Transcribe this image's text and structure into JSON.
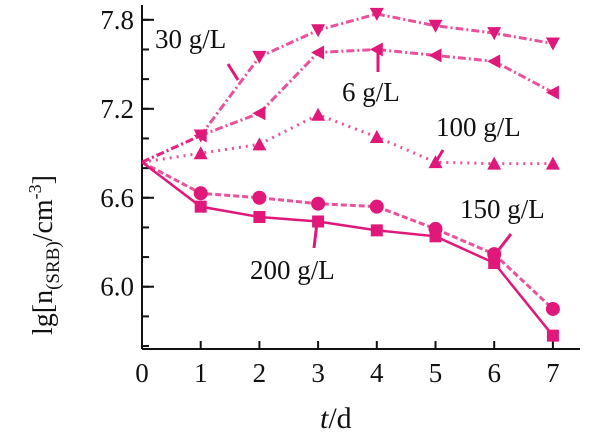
{
  "chart_data": {
    "type": "line",
    "xlabel_italic": "t",
    "xlabel_rest": "/d",
    "ylabel": "lg[n(SRB)/cm-3]",
    "ylabel_parts": {
      "pre": "lg[n",
      "sub": "(SRB)",
      "mid": "/cm",
      "sup": "-3",
      "post": "]"
    },
    "x": [
      0,
      1,
      2,
      3,
      4,
      5,
      6,
      7
    ],
    "xlim": [
      0,
      7.2
    ],
    "ylim": [
      5.58,
      7.9
    ],
    "xticks": [
      "0",
      "1",
      "2",
      "3",
      "4",
      "5",
      "6",
      "7"
    ],
    "yticks": [
      6.0,
      6.6,
      7.2,
      7.8
    ],
    "ytick_labels": [
      "6.0",
      "6.6",
      "7.2",
      "7.8"
    ],
    "grid": false,
    "color": "#e0187a",
    "series": [
      {
        "name": "30 g/L",
        "marker": "triangle-down",
        "line": "dashdot",
        "values": [
          6.84,
          7.02,
          7.55,
          7.73,
          7.84,
          7.76,
          7.71,
          7.64
        ]
      },
      {
        "name": "6 g/L",
        "marker": "triangle-left",
        "line": "dashdot",
        "values": [
          6.84,
          7.02,
          7.17,
          7.58,
          7.6,
          7.56,
          7.52,
          7.31
        ]
      },
      {
        "name": "100 g/L",
        "marker": "triangle-up",
        "line": "dotted",
        "values": [
          6.84,
          6.9,
          6.96,
          7.16,
          7.01,
          6.84,
          6.83,
          6.83
        ]
      },
      {
        "name": "150 g/L",
        "marker": "circle",
        "line": "dashed",
        "values": [
          6.84,
          6.63,
          6.6,
          6.56,
          6.54,
          6.39,
          6.22,
          5.85
        ]
      },
      {
        "name": "200 g/L",
        "marker": "square",
        "line": "solid",
        "values": [
          6.84,
          6.54,
          6.47,
          6.44,
          6.38,
          6.34,
          6.16,
          5.67
        ]
      }
    ]
  }
}
